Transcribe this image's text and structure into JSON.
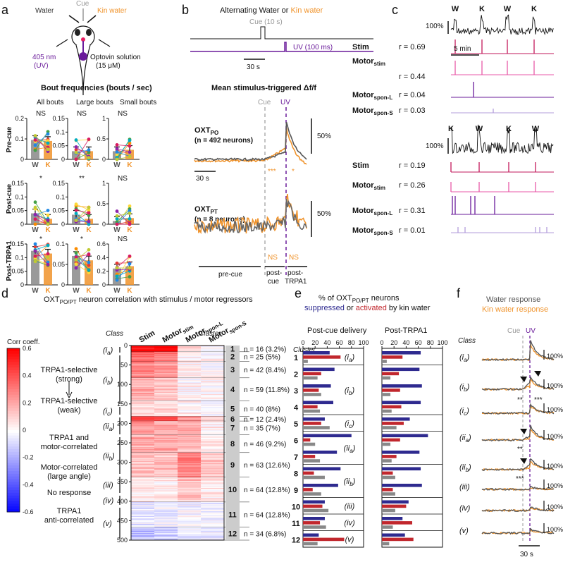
{
  "panels": {
    "a": "a",
    "b": "b",
    "c": "c",
    "d": "d",
    "e": "e",
    "f": "f"
  },
  "panel_a": {
    "water_label": "Water",
    "kin_label": "Kin water",
    "cue_label": "Cue",
    "uv_label": "405 nm",
    "uv_sub": "(UV)",
    "optovin_label": "Optovin solution",
    "optovin_conc": "(15 μM)",
    "title": "Bout frequencies (bouts / sec)",
    "col_titles": [
      "All bouts",
      "Large bouts",
      "Small bouts"
    ],
    "row_titles": [
      "Pre-cue",
      "Post-cue",
      "Post-TRPA1"
    ],
    "xtick_w": "W",
    "xtick_k": "K",
    "sig": [
      [
        "NS",
        "NS",
        "NS"
      ],
      [
        "*",
        "**",
        "NS"
      ],
      [
        "*",
        "*",
        "NS"
      ]
    ],
    "yticks": [
      [
        "0.2",
        "0.1",
        "0"
      ],
      [
        "0.15",
        "0.1",
        "0.05",
        "0"
      ],
      [
        "0.15",
        "0.1",
        "0.05",
        "0"
      ]
    ],
    "yticks_r2": [
      [
        "0.15",
        "0.1",
        "0.05",
        "0"
      ],
      [
        "0.15",
        "0.1",
        "0.05",
        "0"
      ],
      [
        "0.1",
        "0.05",
        "0"
      ]
    ],
    "yticks_r3": [
      [
        "1",
        "0.5",
        "0"
      ],
      [
        "1",
        "0.5",
        "0"
      ],
      [
        "0.6",
        "0.4",
        "0.2",
        "0"
      ]
    ]
  },
  "panel_b": {
    "title_part1": "Alternating Water or ",
    "title_part2": "Kin water",
    "cue_label": "Cue (10 s)",
    "uv_label": "UV (100 ms)",
    "scale_30s": "30 s",
    "mean_title": "Mean stimulus-triggered Δf/f",
    "cue_tag": "Cue",
    "uv_tag": "UV",
    "oxt_po": "OXT",
    "oxt_po_sub": "PO",
    "oxt_po_n": "(n = 492 neurons)",
    "oxt_pt": "OXT",
    "oxt_pt_sub": "PT",
    "oxt_pt_n": "(n = 8 neurons)",
    "scale_50": "50%",
    "sig_po_cue": "***",
    "sig_po_uv": "*",
    "sig_pt_cue": "NS",
    "sig_pt_uv": "NS",
    "epoch_pre": "pre-cue",
    "epoch_post": "post-",
    "epoch_post2": "cue",
    "epoch_trpa": "post-",
    "epoch_trpa2": "TRPA1"
  },
  "panel_c": {
    "top_events": [
      "W",
      "K",
      "W",
      "K"
    ],
    "bottom_events": [
      "K",
      "W",
      "K",
      "W"
    ],
    "scale_100": "100%",
    "scale_5min": "5 min",
    "rows": [
      {
        "name": "Stim",
        "sub": ""
      },
      {
        "name": "Motor",
        "sub": "stim"
      },
      {
        "name": "Motor",
        "sub": "spon-L"
      },
      {
        "name": "Motor",
        "sub": "spon-S"
      }
    ],
    "r_top": [
      "r = 0.69",
      "r = 0.44",
      "r = 0.04",
      "r = 0.03"
    ],
    "r_bottom": [
      "r = 0.19",
      "r = 0.26",
      "r = 0.31",
      "r = 0.01"
    ]
  },
  "panel_d": {
    "title_main": "OXT",
    "title_sub": "PO/PT",
    "title_rest": " neuron correlation with stimulus / motor regressors",
    "class_header": "Class",
    "cluster_header": "Cluster",
    "corr_label": "Corr coeff.",
    "cbar_ticks": [
      "0.6",
      "0.4",
      "0.2",
      "0",
      "-0.2",
      "-0.4",
      "-0.6"
    ],
    "col_labels": [
      {
        "name": "Stim",
        "sub": ""
      },
      {
        "name": "Motor",
        "sub": "stim"
      },
      {
        "name": "Motor",
        "sub": "spon-L"
      },
      {
        "name": "Motor",
        "sub": "spon-S"
      }
    ],
    "yticks": [
      "0",
      "50",
      "100",
      "150",
      "200",
      "250",
      "300",
      "350",
      "400",
      "450",
      "500"
    ],
    "groups": [
      {
        "label": "TRPA1-selective",
        "label2": "(strong)"
      },
      {
        "label": "TRPA1-selective",
        "label2": "(weak)"
      },
      {
        "label": "TRPA1 and",
        "label2": "motor-correlated"
      },
      {
        "label": "Motor-correlated",
        "label2": "(large angle)"
      },
      {
        "label": "No response",
        "label2": ""
      },
      {
        "label": "TRPA1",
        "label2": "anti-correlated"
      }
    ],
    "class_tags": [
      {
        "c": "i",
        "s": "a"
      },
      {
        "c": "i",
        "s": "b"
      },
      {
        "c": "i",
        "s": "c"
      },
      {
        "c": "ii",
        "s": "a"
      },
      {
        "c": "ii",
        "s": "b"
      },
      {
        "c": "iii",
        "s": ""
      },
      {
        "c": "iv",
        "s": ""
      },
      {
        "c": "v",
        "s": ""
      }
    ],
    "clusters": [
      {
        "id": "1",
        "n": "n = 16 (3.2%)",
        "color": "#2ecc40"
      },
      {
        "id": "2",
        "n": "n = 25 (5%)",
        "color": "#7b1fa2"
      },
      {
        "id": "3",
        "n": "n = 42 (8.4%)",
        "color": "#26c6da"
      },
      {
        "id": "4",
        "n": "n = 59 (11.8%)",
        "color": "#9ccc65"
      },
      {
        "id": "5",
        "n": "n = 40 (8%)",
        "color": "#1e88e5"
      },
      {
        "id": "6",
        "n": "n = 12 (2.4%)",
        "color": "#f4d03f"
      },
      {
        "id": "7",
        "n": "n = 35 (7%)",
        "color": "#1a237e"
      },
      {
        "id": "8",
        "n": "n = 46 (9.2%)",
        "color": "#e91e8c"
      },
      {
        "id": "9",
        "n": "n = 63 (12.6%)",
        "color": "#c2185b"
      },
      {
        "id": "10",
        "n": "n = 64 (12.8%)",
        "color": "#f39c12"
      },
      {
        "id": "11",
        "n": "n = 64 (12.8%)",
        "color": "#2ecc71"
      },
      {
        "id": "12",
        "n": "n = 34 (6.8%)",
        "color": "#c0392b"
      }
    ]
  },
  "panel_e": {
    "title1": "% of OXT",
    "title1_sub": "PO/PT",
    "title1_rest": " neurons",
    "title2a": "suppressed",
    "title2b": " or ",
    "title2c": "activated",
    "title2d": " by kin water",
    "left_title": "Post-cue delivery",
    "right_title": "Post-TRPA1",
    "cluster_header": "Cluster",
    "xticks": [
      "0",
      "20",
      "40",
      "60",
      "80",
      "100"
    ],
    "class_tags": [
      {
        "c": "i",
        "s": "a"
      },
      {
        "c": "i",
        "s": "b"
      },
      {
        "c": "i",
        "s": "c"
      },
      {
        "c": "ii",
        "s": "a"
      },
      {
        "c": "ii",
        "s": "b"
      },
      {
        "c": "iii",
        "s": ""
      },
      {
        "c": "iv",
        "s": ""
      },
      {
        "c": "v",
        "s": ""
      }
    ],
    "colors": {
      "suppressed": "#2e2a8f",
      "activated": "#c1272d",
      "none": "#888888"
    }
  },
  "panel_f": {
    "title1": "Water response",
    "title2": "Kin water response",
    "cue_tag": "Cue",
    "uv_tag": "UV",
    "class_header": "Class",
    "scale_100": "100%",
    "scale_30s": "30 s",
    "sig_ib_cue": "**",
    "sig_ib_uv": "***",
    "sig_iia": "**",
    "sig_iib": "***",
    "class_tags": [
      {
        "c": "i",
        "s": "a"
      },
      {
        "c": "i",
        "s": "b"
      },
      {
        "c": "i",
        "s": "c"
      },
      {
        "c": "ii",
        "s": "a"
      },
      {
        "c": "ii",
        "s": "b"
      },
      {
        "c": "iii",
        "s": ""
      },
      {
        "c": "iv",
        "s": ""
      },
      {
        "c": "v",
        "s": ""
      }
    ]
  },
  "chart_data": [
    {
      "type": "bar",
      "panel": "a",
      "categories": [
        "W",
        "K"
      ],
      "grid": [
        {
          "row": "Pre-cue",
          "col": "All bouts",
          "values": [
            0.095,
            0.09
          ],
          "ylim": [
            0,
            0.2
          ],
          "sig": "NS"
        },
        {
          "row": "Pre-cue",
          "col": "Large bouts",
          "values": [
            0.03,
            0.03
          ],
          "ylim": [
            0,
            0.15
          ],
          "sig": "NS"
        },
        {
          "row": "Pre-cue",
          "col": "Small bouts",
          "values": [
            0.03,
            0.035
          ],
          "ylim": [
            0,
            0.15
          ],
          "sig": "NS"
        },
        {
          "row": "Post-cue",
          "col": "All bouts",
          "values": [
            0.04,
            0.02
          ],
          "ylim": [
            0,
            0.15
          ],
          "sig": "*"
        },
        {
          "row": "Post-cue",
          "col": "Large bouts",
          "values": [
            0.035,
            0.02
          ],
          "ylim": [
            0,
            0.15
          ],
          "sig": "**"
        },
        {
          "row": "Post-cue",
          "col": "Small bouts",
          "values": [
            0.008,
            0.015
          ],
          "ylim": [
            0,
            0.1
          ],
          "sig": "NS"
        },
        {
          "row": "Post-TRPA1",
          "col": "All bouts",
          "values": [
            1.0,
            0.92
          ],
          "ylim": [
            0,
            1.2
          ],
          "sig": "*"
        },
        {
          "row": "Post-TRPA1",
          "col": "Large bouts",
          "values": [
            0.85,
            0.72
          ],
          "ylim": [
            0,
            1.2
          ],
          "sig": "*"
        },
        {
          "row": "Post-TRPA1",
          "col": "Small bouts",
          "values": [
            0.28,
            0.32
          ],
          "ylim": [
            0,
            0.7
          ],
          "sig": "NS"
        }
      ]
    },
    {
      "type": "line",
      "panel": "b",
      "xlabel": "time",
      "series": [
        {
          "name": "Water"
        },
        {
          "name": "Kin water"
        }
      ]
    },
    {
      "type": "heatmap",
      "panel": "d",
      "ylim": [
        0,
        500
      ],
      "clim": [
        -0.6,
        0.6
      ],
      "columns": [
        "Stim",
        "Motor stim",
        "Motor spon-L",
        "Motor spon-S"
      ],
      "cluster_bounds": [
        0,
        16,
        41,
        83,
        142,
        182,
        194,
        229,
        275,
        338,
        402,
        466,
        500
      ],
      "cluster_means": [
        [
          0.58,
          0.58,
          0.06,
          0.02
        ],
        [
          0.35,
          0.32,
          0.04,
          0.02
        ],
        [
          0.28,
          0.24,
          0.03,
          0.02
        ],
        [
          0.2,
          0.15,
          0.03,
          0.02
        ],
        [
          0.1,
          0.08,
          0.02,
          0.01
        ],
        [
          0.45,
          0.45,
          0.25,
          0.1
        ],
        [
          0.25,
          0.2,
          0.2,
          0.05
        ],
        [
          0.2,
          0.2,
          0.15,
          0.05
        ],
        [
          0.15,
          0.15,
          0.3,
          0.12
        ],
        [
          0.05,
          0.05,
          0.15,
          0.05
        ],
        [
          -0.05,
          -0.03,
          -0.02,
          -0.02
        ],
        [
          -0.15,
          -0.12,
          -0.05,
          -0.05
        ]
      ]
    },
    {
      "type": "bar",
      "panel": "e",
      "orientation": "horizontal",
      "xlim": [
        0,
        100
      ],
      "clusters": [
        "1",
        "2",
        "3",
        "4",
        "5",
        "6",
        "7",
        "8",
        "9",
        "10",
        "11",
        "12"
      ],
      "post_cue": {
        "suppressed": [
          44,
          52,
          46,
          50,
          36,
          80,
          56,
          62,
          58,
          36,
          36,
          26
        ],
        "activated": [
          62,
          30,
          26,
          24,
          30,
          12,
          20,
          18,
          16,
          32,
          28,
          68
        ],
        "none": [
          8,
          24,
          30,
          28,
          44,
          20,
          28,
          36,
          30,
          42,
          38,
          24
        ]
      },
      "post_trpa1": {
        "suppressed": [
          64,
          62,
          66,
          64,
          46,
          76,
          62,
          64,
          66,
          44,
          34,
          38
        ],
        "activated": [
          34,
          28,
          30,
          32,
          36,
          30,
          24,
          18,
          18,
          40,
          50,
          52
        ],
        "none": [
          8,
          14,
          14,
          16,
          24,
          14,
          16,
          22,
          22,
          22,
          18,
          12
        ]
      }
    },
    {
      "type": "line",
      "panel": "f",
      "series": [
        {
          "name": "Water response"
        },
        {
          "name": "Kin water response"
        }
      ]
    }
  ]
}
